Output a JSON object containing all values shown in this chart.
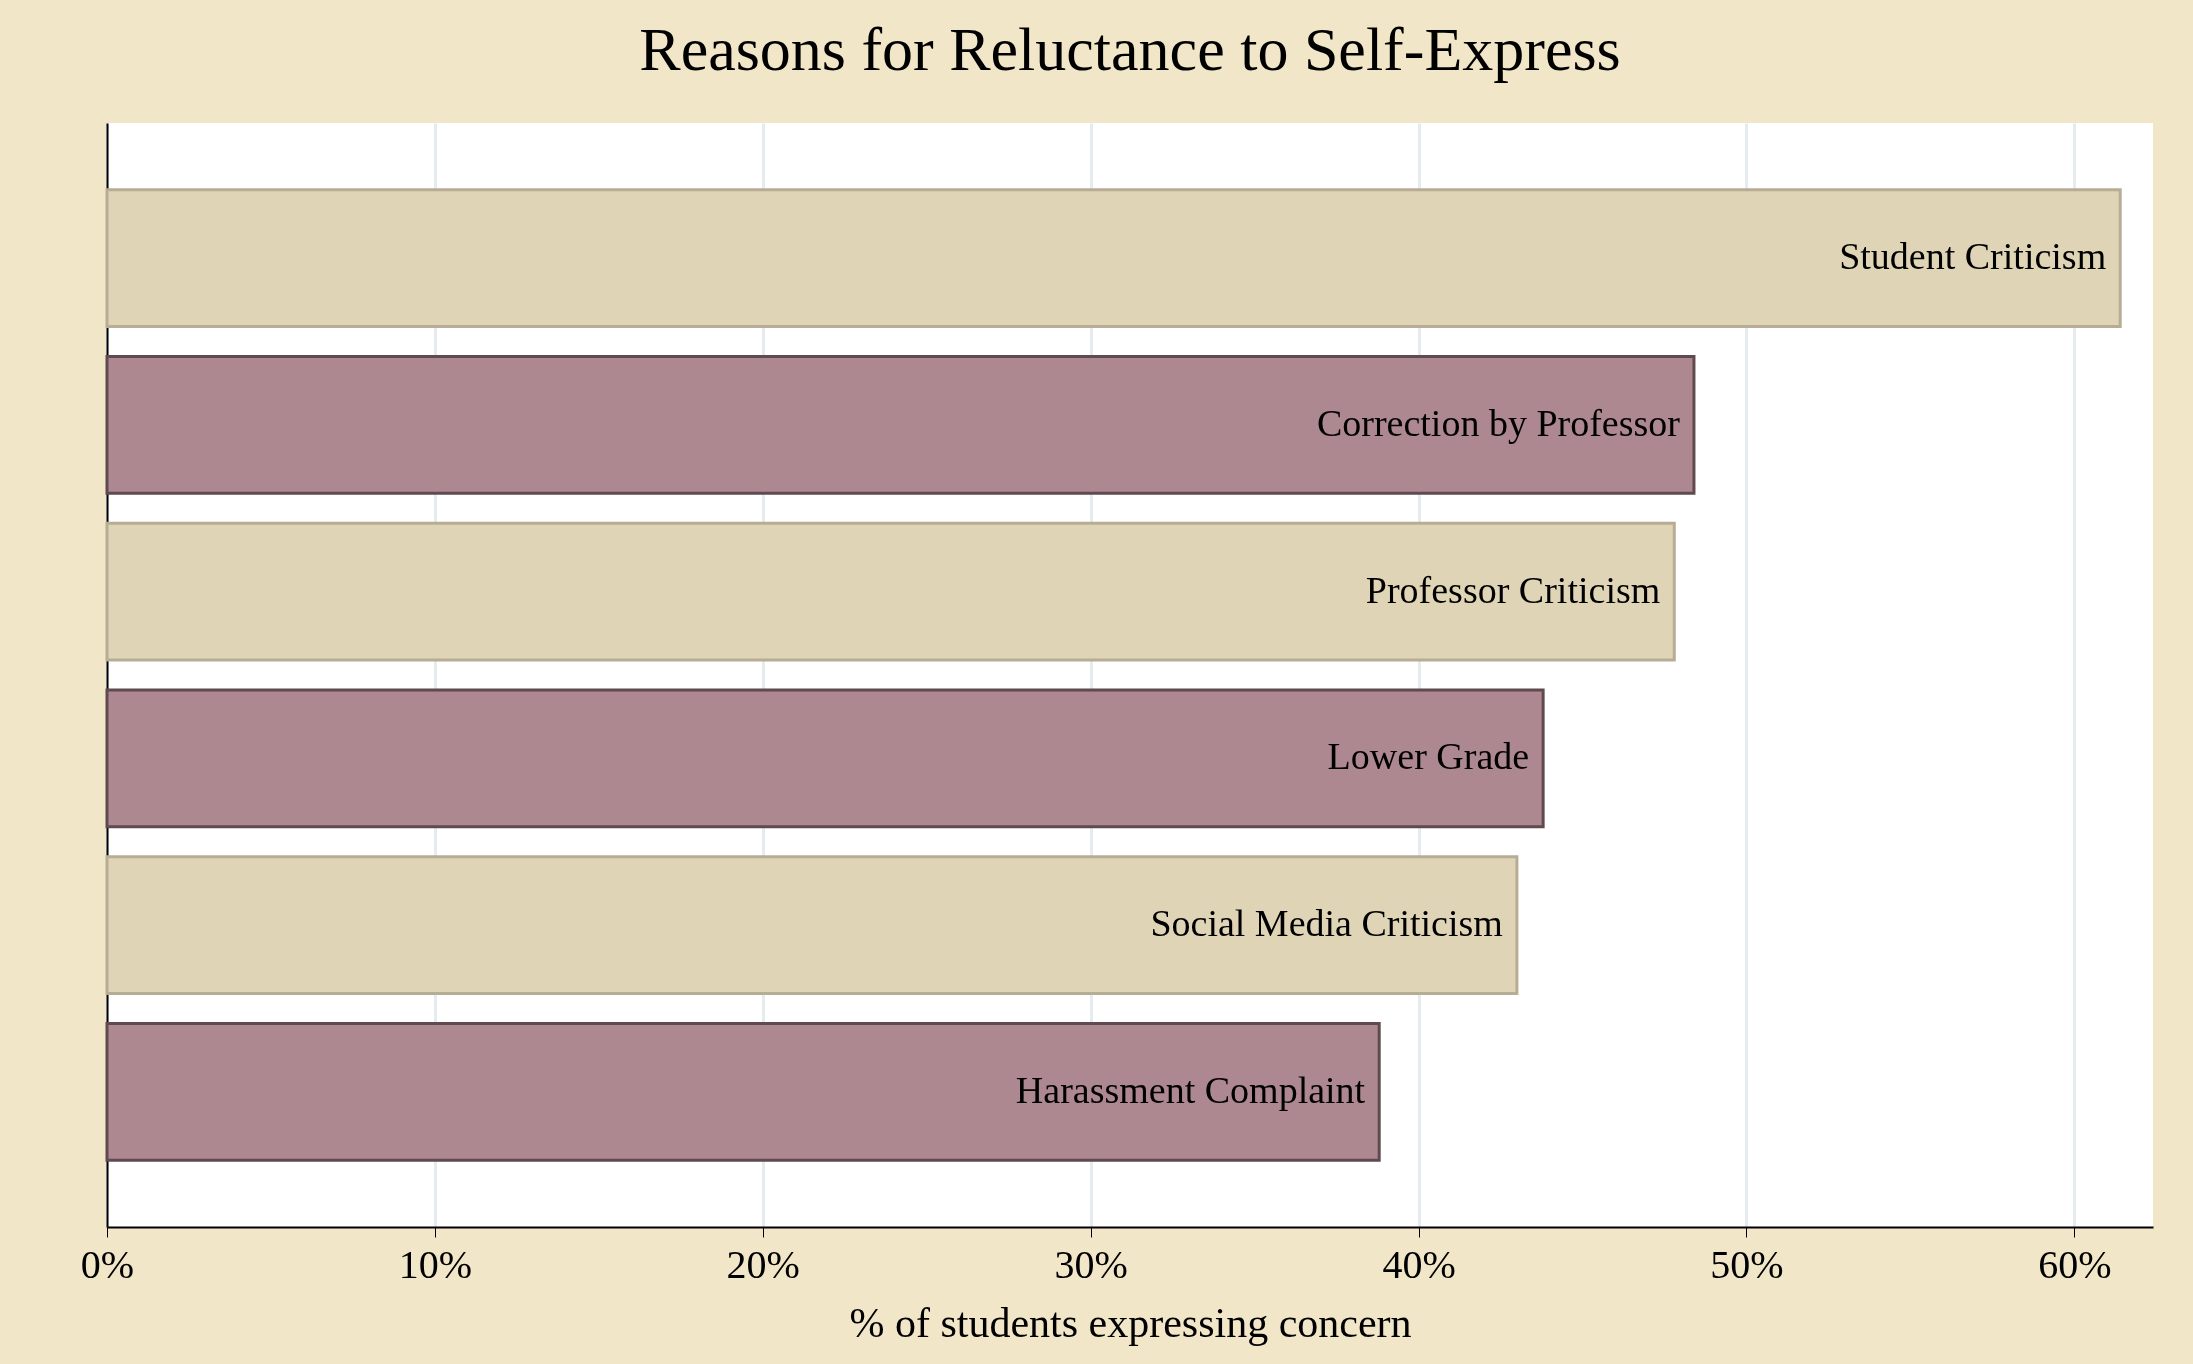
{
  "chart_data": {
    "type": "bar",
    "orientation": "horizontal",
    "title": "Reasons for Reluctance to Self-Express",
    "xlabel": "% of students expressing concern",
    "categories": [
      "Student Criticism",
      "Correction by Professor",
      "Professor Criticism",
      "Lower Grade",
      "Social Media Criticism",
      "Harassment Complaint"
    ],
    "values": [
      61.4,
      48.4,
      47.8,
      43.8,
      43.0,
      38.8
    ],
    "colors": [
      "#e0d4b6",
      "#ae8890",
      "#e0d4b6",
      "#ae8890",
      "#e0d4b6",
      "#ae8890"
    ],
    "xlim": [
      0,
      62.4
    ],
    "xticks": [
      {
        "value": 0,
        "label": "0%"
      },
      {
        "value": 10,
        "label": "10%"
      },
      {
        "value": 20,
        "label": "20%"
      },
      {
        "value": 30,
        "label": "30%"
      },
      {
        "value": 40,
        "label": "40%"
      },
      {
        "value": 50,
        "label": "50%"
      },
      {
        "value": 60,
        "label": "60%"
      }
    ],
    "grid": "x",
    "tick_labels": "x"
  }
}
